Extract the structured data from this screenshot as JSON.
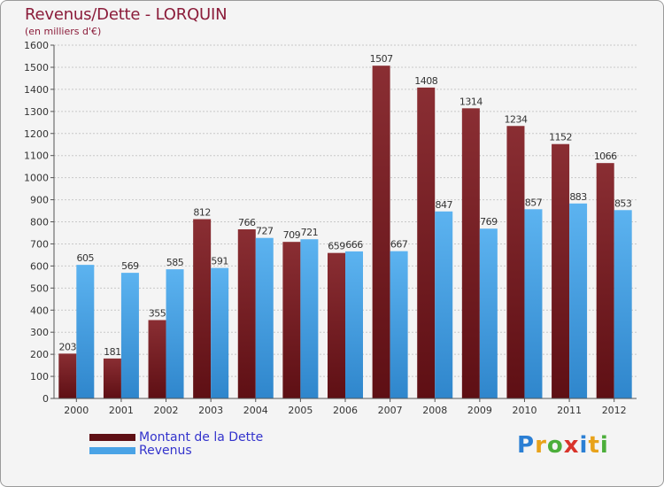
{
  "chart_data": {
    "type": "bar",
    "title": "Revenus/Dette - LORQUIN",
    "subtitle": "(en milliers d'€)",
    "categories": [
      "2000",
      "2001",
      "2002",
      "2003",
      "2004",
      "2005",
      "2006",
      "2007",
      "2008",
      "2009",
      "2010",
      "2011",
      "2012"
    ],
    "series": [
      {
        "name": "Montant de la Dette",
        "color": "#7a1f25",
        "values": [
          203,
          181,
          355,
          812,
          766,
          709,
          659,
          1507,
          1408,
          1314,
          1234,
          1152,
          1066
        ]
      },
      {
        "name": "Revenus",
        "color": "#4aa3e6",
        "values": [
          605,
          569,
          585,
          591,
          727,
          721,
          666,
          667,
          847,
          769,
          857,
          883,
          853
        ]
      }
    ],
    "ylim": [
      0,
      1600
    ],
    "yticks": [
      0,
      100,
      200,
      300,
      400,
      500,
      600,
      700,
      800,
      900,
      1000,
      1100,
      1200,
      1300,
      1400,
      1500,
      1600
    ],
    "grid": true,
    "legend": "bottom-left"
  },
  "logo": {
    "letters": [
      "P",
      "r",
      "o",
      "x",
      "i",
      "t",
      "i"
    ],
    "colors": [
      "#2b7fd4",
      "#e8a21a",
      "#4cae3a",
      "#d9342b",
      "#2b7fd4",
      "#e8a21a",
      "#4cae3a"
    ]
  }
}
